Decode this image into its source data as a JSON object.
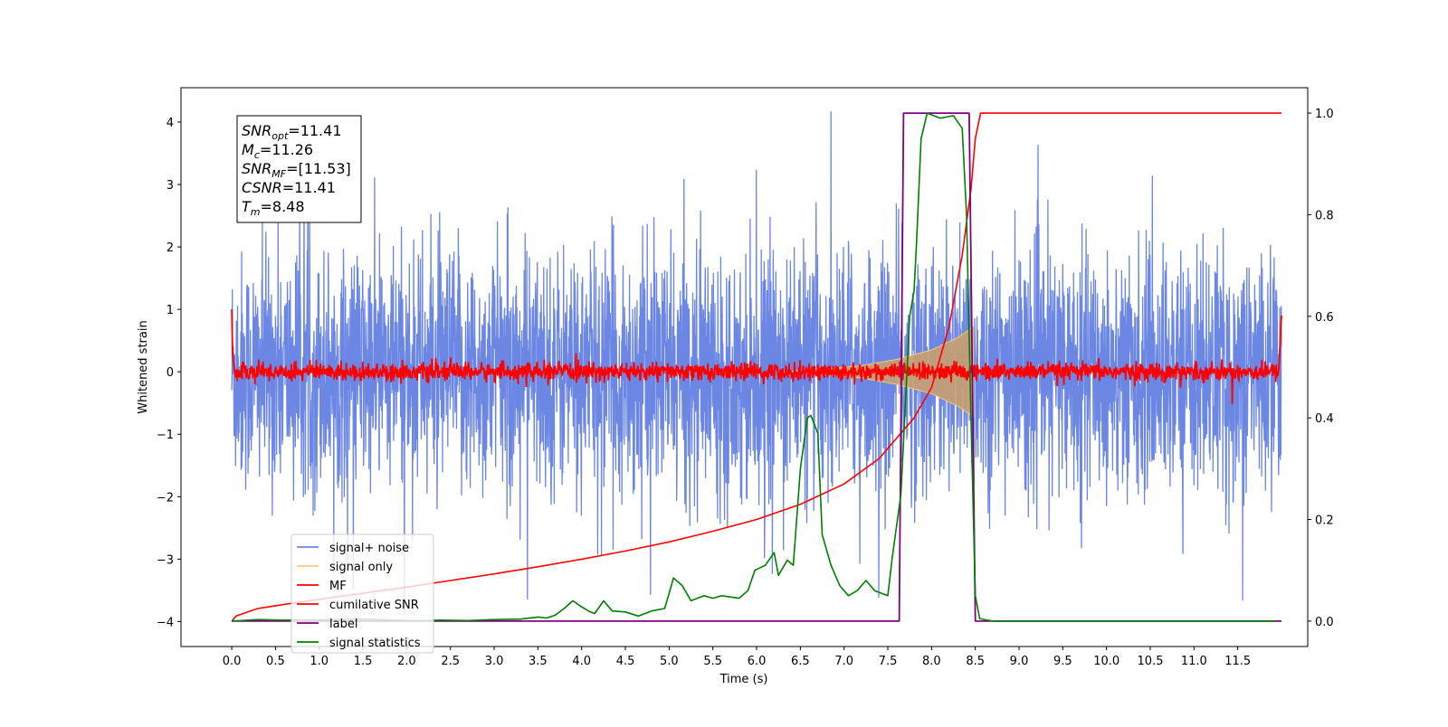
{
  "chart_data": {
    "type": "line",
    "xlabel": "Time (s)",
    "ylabel": "Whitened strain",
    "xlim": [
      -0.58,
      12.3
    ],
    "ylim_left": [
      -4.4,
      4.55
    ],
    "ylim_right": [
      -0.05,
      1.05
    ],
    "x_ticks": [
      0.0,
      0.5,
      1.0,
      1.5,
      2.0,
      2.5,
      3.0,
      3.5,
      4.0,
      4.5,
      5.0,
      5.5,
      6.0,
      6.5,
      7.0,
      7.5,
      8.0,
      8.5,
      9.0,
      9.5,
      10.0,
      10.5,
      11.0,
      11.5
    ],
    "x_tick_labels": [
      "0.0",
      "0.5",
      "1.0",
      "1.5",
      "2.0",
      "2.5",
      "3.0",
      "3.5",
      "4.0",
      "4.5",
      "5.0",
      "5.5",
      "6.0",
      "6.5",
      "7.0",
      "7.5",
      "8.0",
      "8.5",
      "9.0",
      "9.5",
      "10.0",
      "10.5",
      "11.0",
      "11.5"
    ],
    "y_left_ticks": [
      -4,
      -3,
      -2,
      -1,
      0,
      1,
      2,
      3,
      4
    ],
    "y_left_tick_labels": [
      "−4",
      "−3",
      "−2",
      "−1",
      "0",
      "1",
      "2",
      "3",
      "4"
    ],
    "y_right_ticks": [
      0.0,
      0.2,
      0.4,
      0.6,
      0.8,
      1.0
    ],
    "y_right_tick_labels": [
      "0.0",
      "0.2",
      "0.4",
      "0.6",
      "0.8",
      "1.0"
    ],
    "grid": false,
    "legend_position": "lower-left",
    "annotation": {
      "lines": [
        {
          "base": "SNR",
          "sub": "opt",
          "value": "=11.41"
        },
        {
          "base": "M",
          "sub": "c",
          "value": "=11.26"
        },
        {
          "base": "SNR",
          "sub": "MF",
          "value": "=[11.53]"
        },
        {
          "base": "CSNR",
          "sub": "",
          "value": "=11.41"
        },
        {
          "base": "T",
          "sub": "m",
          "value": "=8.48"
        }
      ]
    },
    "series": [
      {
        "name": "signal+ noise",
        "axis": "left",
        "color": "#6b86e3",
        "kind": "noise",
        "x_range": [
          0.0,
          12.0
        ],
        "amplitude_typical": 1.0,
        "extremes": [
          4.17,
          -3.9
        ]
      },
      {
        "name": "signal only",
        "axis": "left",
        "color": "#f5c77e",
        "kind": "chirp",
        "x_range": [
          6.3,
          8.48
        ],
        "envelope": [
          [
            6.3,
            0.0
          ],
          [
            6.8,
            0.05
          ],
          [
            7.2,
            0.1
          ],
          [
            7.6,
            0.2
          ],
          [
            8.0,
            0.35
          ],
          [
            8.3,
            0.55
          ],
          [
            8.48,
            0.72
          ]
        ]
      },
      {
        "name": "MF",
        "axis": "left",
        "color": "#ff0000",
        "kind": "noise",
        "x_range": [
          0.0,
          12.0
        ],
        "amplitude_typical": 0.08,
        "points": [
          [
            0.0,
            1.0
          ],
          [
            0.01,
            0.3
          ],
          [
            0.03,
            0.05
          ],
          [
            11.97,
            0.05
          ],
          [
            12.0,
            0.9
          ]
        ]
      },
      {
        "name": "cumilative SNR",
        "axis": "right",
        "color": "#ff0000",
        "points": [
          [
            0.0,
            0.0
          ],
          [
            0.05,
            0.01
          ],
          [
            0.3,
            0.025
          ],
          [
            0.6,
            0.033
          ],
          [
            1.0,
            0.043
          ],
          [
            1.5,
            0.055
          ],
          [
            2.0,
            0.067
          ],
          [
            2.5,
            0.08
          ],
          [
            3.0,
            0.093
          ],
          [
            3.5,
            0.107
          ],
          [
            4.0,
            0.122
          ],
          [
            4.5,
            0.138
          ],
          [
            5.0,
            0.156
          ],
          [
            5.5,
            0.177
          ],
          [
            6.0,
            0.2
          ],
          [
            6.5,
            0.23
          ],
          [
            7.0,
            0.27
          ],
          [
            7.4,
            0.32
          ],
          [
            7.8,
            0.4
          ],
          [
            8.0,
            0.46
          ],
          [
            8.2,
            0.58
          ],
          [
            8.35,
            0.72
          ],
          [
            8.45,
            0.85
          ],
          [
            8.5,
            0.95
          ],
          [
            8.56,
            1.0
          ],
          [
            12.0,
            1.0
          ]
        ]
      },
      {
        "name": "label",
        "axis": "right",
        "color": "#800080",
        "points": [
          [
            0.0,
            0.0
          ],
          [
            7.63,
            0.0
          ],
          [
            7.68,
            1.0
          ],
          [
            8.43,
            1.0
          ],
          [
            8.5,
            0.0
          ],
          [
            12.0,
            0.0
          ]
        ]
      },
      {
        "name": "signal statistics",
        "axis": "right",
        "color": "#008000",
        "points": [
          [
            0.0,
            0.0
          ],
          [
            0.3,
            0.003
          ],
          [
            0.6,
            0.002
          ],
          [
            0.9,
            0.002
          ],
          [
            1.2,
            0.003
          ],
          [
            1.5,
            0.004
          ],
          [
            1.8,
            0.002
          ],
          [
            2.1,
            0.001
          ],
          [
            2.4,
            0.002
          ],
          [
            2.7,
            0.001
          ],
          [
            3.0,
            0.003
          ],
          [
            3.3,
            0.004
          ],
          [
            3.5,
            0.008
          ],
          [
            3.6,
            0.006
          ],
          [
            3.7,
            0.012
          ],
          [
            3.8,
            0.025
          ],
          [
            3.9,
            0.04
          ],
          [
            4.0,
            0.028
          ],
          [
            4.1,
            0.018
          ],
          [
            4.15,
            0.015
          ],
          [
            4.25,
            0.04
          ],
          [
            4.35,
            0.02
          ],
          [
            4.5,
            0.018
          ],
          [
            4.65,
            0.01
          ],
          [
            4.8,
            0.02
          ],
          [
            4.95,
            0.025
          ],
          [
            5.05,
            0.085
          ],
          [
            5.15,
            0.07
          ],
          [
            5.25,
            0.04
          ],
          [
            5.4,
            0.05
          ],
          [
            5.5,
            0.045
          ],
          [
            5.6,
            0.05
          ],
          [
            5.8,
            0.045
          ],
          [
            5.9,
            0.06
          ],
          [
            5.98,
            0.1
          ],
          [
            6.1,
            0.11
          ],
          [
            6.2,
            0.135
          ],
          [
            6.25,
            0.09
          ],
          [
            6.35,
            0.12
          ],
          [
            6.42,
            0.11
          ],
          [
            6.5,
            0.3
          ],
          [
            6.58,
            0.4
          ],
          [
            6.62,
            0.405
          ],
          [
            6.7,
            0.37
          ],
          [
            6.75,
            0.17
          ],
          [
            6.85,
            0.11
          ],
          [
            6.95,
            0.07
          ],
          [
            7.05,
            0.05
          ],
          [
            7.15,
            0.06
          ],
          [
            7.25,
            0.08
          ],
          [
            7.35,
            0.06
          ],
          [
            7.5,
            0.05
          ],
          [
            7.55,
            0.125
          ],
          [
            7.65,
            0.25
          ],
          [
            7.75,
            0.6
          ],
          [
            7.8,
            0.65
          ],
          [
            7.83,
            0.75
          ],
          [
            7.88,
            0.95
          ],
          [
            7.95,
            1.0
          ],
          [
            8.1,
            0.99
          ],
          [
            8.25,
            0.995
          ],
          [
            8.35,
            0.97
          ],
          [
            8.4,
            0.8
          ],
          [
            8.45,
            0.4
          ],
          [
            8.5,
            0.05
          ],
          [
            8.55,
            0.005
          ],
          [
            8.7,
            0.0
          ],
          [
            11.92,
            0.0
          ]
        ]
      }
    ]
  }
}
